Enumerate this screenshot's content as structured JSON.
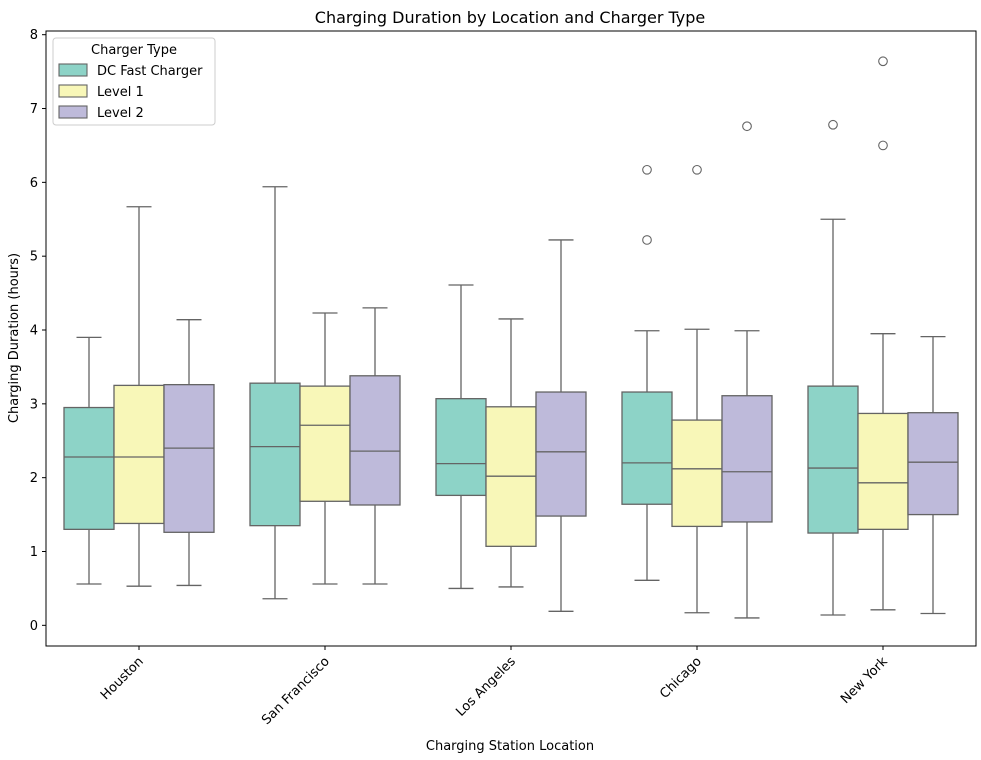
{
  "chart_data": {
    "type": "boxplot",
    "title": "Charging Duration by Location and Charger Type",
    "xlabel": "Charging Station Location",
    "ylabel": "Charging Duration (hours)",
    "ylim": [
      -0.28,
      8.05
    ],
    "yticks": [
      0,
      1,
      2,
      3,
      4,
      5,
      6,
      7,
      8
    ],
    "grid": false,
    "legend": {
      "title": "Charger Type",
      "placement": "top-left"
    },
    "categories": [
      "Houston",
      "San Francisco",
      "Los Angeles",
      "Chicago",
      "New York"
    ],
    "series": [
      {
        "name": "DC Fast Charger",
        "color": "#8dd3c7",
        "boxes": [
          {
            "whisker_low": 0.56,
            "q1": 1.3,
            "median": 2.28,
            "q3": 2.95,
            "whisker_high": 3.9,
            "outliers": []
          },
          {
            "whisker_low": 0.36,
            "q1": 1.35,
            "median": 2.42,
            "q3": 3.28,
            "whisker_high": 5.94,
            "outliers": []
          },
          {
            "whisker_low": 0.5,
            "q1": 1.76,
            "median": 2.19,
            "q3": 3.07,
            "whisker_high": 4.61,
            "outliers": []
          },
          {
            "whisker_low": 0.61,
            "q1": 1.64,
            "median": 2.2,
            "q3": 3.16,
            "whisker_high": 3.99,
            "outliers": [
              5.22,
              6.17
            ]
          },
          {
            "whisker_low": 0.14,
            "q1": 1.25,
            "median": 2.13,
            "q3": 3.24,
            "whisker_high": 5.5,
            "outliers": [
              6.78
            ]
          }
        ]
      },
      {
        "name": "Level 1",
        "color": "#f8f7b8",
        "boxes": [
          {
            "whisker_low": 0.53,
            "q1": 1.38,
            "median": 2.28,
            "q3": 3.25,
            "whisker_high": 5.67,
            "outliers": []
          },
          {
            "whisker_low": 0.56,
            "q1": 1.68,
            "median": 2.71,
            "q3": 3.24,
            "whisker_high": 4.23,
            "outliers": []
          },
          {
            "whisker_low": 0.52,
            "q1": 1.07,
            "median": 2.02,
            "q3": 2.96,
            "whisker_high": 4.15,
            "outliers": []
          },
          {
            "whisker_low": 0.17,
            "q1": 1.34,
            "median": 2.12,
            "q3": 2.78,
            "whisker_high": 4.01,
            "outliers": [
              6.17
            ]
          },
          {
            "whisker_low": 0.21,
            "q1": 1.3,
            "median": 1.93,
            "q3": 2.87,
            "whisker_high": 3.95,
            "outliers": [
              6.5,
              7.64
            ]
          }
        ]
      },
      {
        "name": "Level 2",
        "color": "#bebada",
        "boxes": [
          {
            "whisker_low": 0.54,
            "q1": 1.26,
            "median": 2.4,
            "q3": 3.26,
            "whisker_high": 4.14,
            "outliers": []
          },
          {
            "whisker_low": 0.56,
            "q1": 1.63,
            "median": 2.36,
            "q3": 3.38,
            "whisker_high": 4.3,
            "outliers": []
          },
          {
            "whisker_low": 0.19,
            "q1": 1.48,
            "median": 2.35,
            "q3": 3.16,
            "whisker_high": 5.22,
            "outliers": []
          },
          {
            "whisker_low": 0.1,
            "q1": 1.4,
            "median": 2.08,
            "q3": 3.11,
            "whisker_high": 3.99,
            "outliers": [
              6.76
            ]
          },
          {
            "whisker_low": 0.16,
            "q1": 1.5,
            "median": 2.21,
            "q3": 2.88,
            "whisker_high": 3.91,
            "outliers": []
          }
        ]
      }
    ]
  }
}
